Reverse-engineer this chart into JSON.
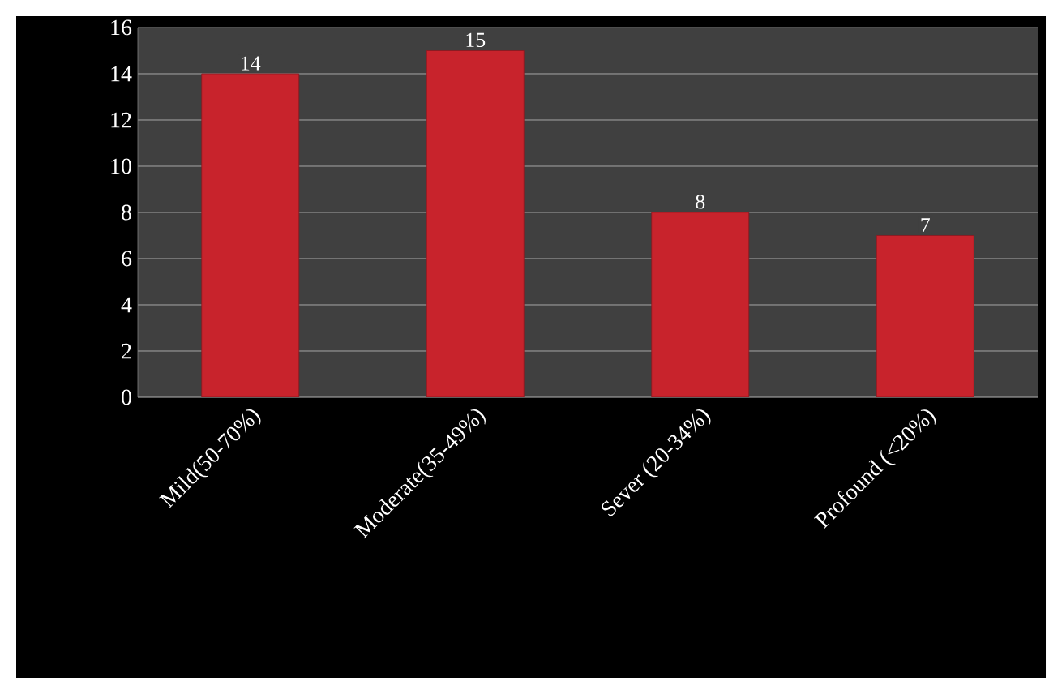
{
  "chart_data": {
    "type": "bar",
    "categories": [
      "Mild(50-70%)",
      "Moderate(35-49%)",
      "Sever (20-34%)",
      "Profound (<20%)"
    ],
    "values": [
      14,
      15,
      8,
      7
    ],
    "color": "#c8232c",
    "ylim": [
      0,
      16
    ],
    "yticks": [
      0,
      2,
      4,
      6,
      8,
      10,
      12,
      14,
      16
    ],
    "grid": "y",
    "data_labels": true
  }
}
